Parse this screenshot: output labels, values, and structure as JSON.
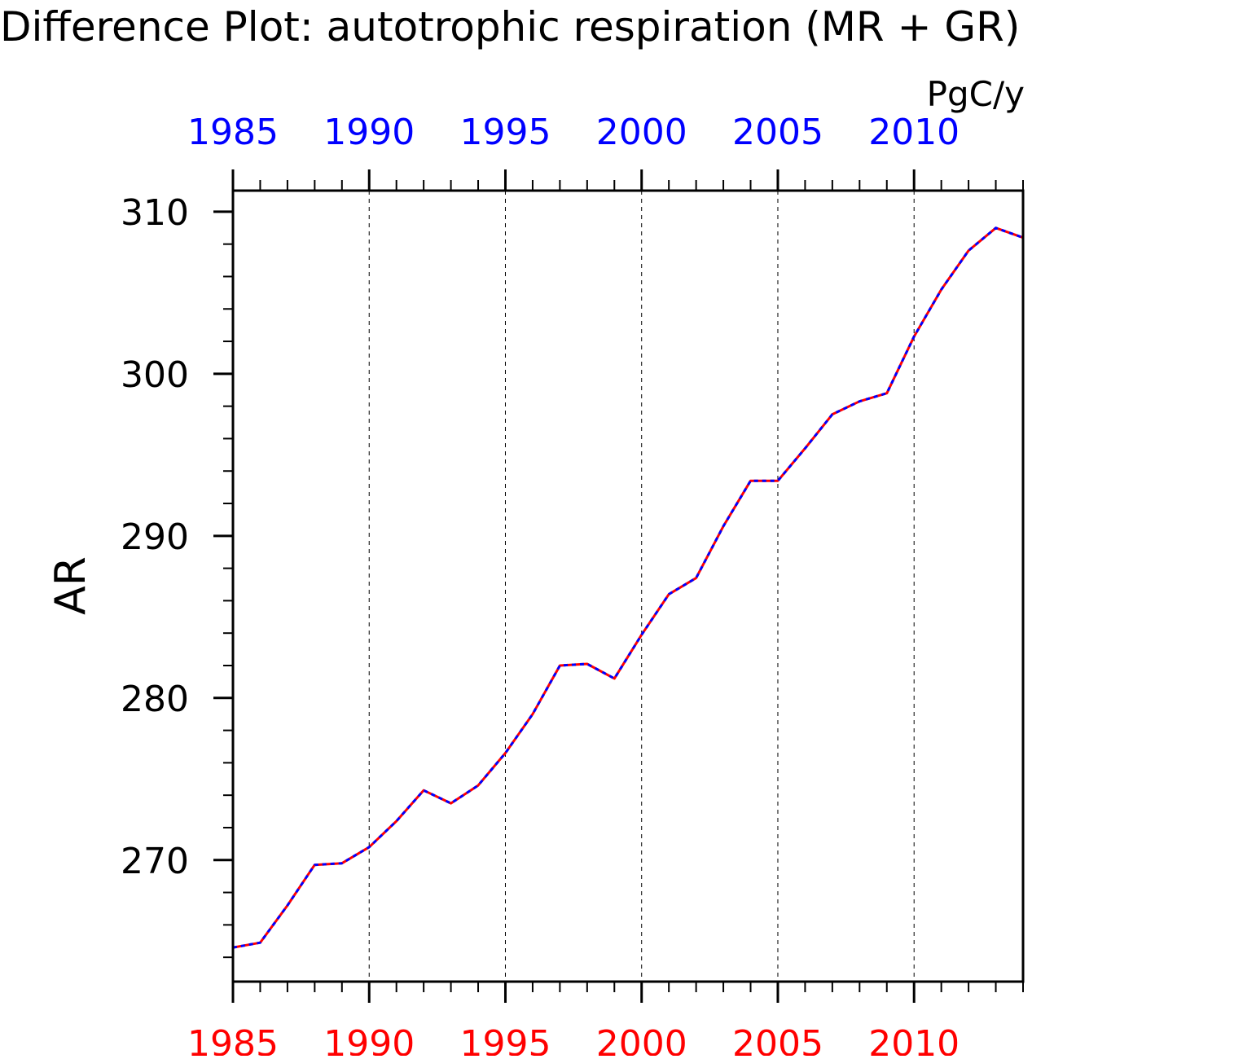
{
  "chart_data": {
    "type": "line",
    "title": "Difference Plot: autotrophic respiration (MR + GR)",
    "units": "PgC/y",
    "xlabel": "",
    "ylabel": "AR",
    "xlim": [
      1985,
      2014
    ],
    "ylim": [
      262.5,
      311.3
    ],
    "x_ticks": [
      1985,
      1990,
      1995,
      2000,
      2005,
      2010
    ],
    "y_ticks": [
      270,
      280,
      290,
      300,
      310
    ],
    "grid": "vertical dashed at major x ticks",
    "x": [
      1985,
      1986,
      1987,
      1988,
      1989,
      1990,
      1991,
      1992,
      1993,
      1994,
      1995,
      1996,
      1997,
      1998,
      1999,
      2000,
      2001,
      2002,
      2003,
      2004,
      2005,
      2006,
      2007,
      2008,
      2009,
      2010,
      2011,
      2012,
      2013,
      2014
    ],
    "series": [
      {
        "color": "#ff0000",
        "dash": "solid",
        "values": [
          264.6,
          264.9,
          267.2,
          269.7,
          269.8,
          270.8,
          272.4,
          274.3,
          273.5,
          274.6,
          276.6,
          279.0,
          282.0,
          282.1,
          281.2,
          283.9,
          286.4,
          287.4,
          290.6,
          293.4,
          293.4,
          295.4,
          297.5,
          298.3,
          298.8,
          302.3,
          305.2,
          307.6,
          309.0,
          308.4
        ]
      },
      {
        "color": "#0000ff",
        "dash": "dashed",
        "values": [
          264.6,
          264.9,
          267.2,
          269.7,
          269.8,
          270.8,
          272.4,
          274.3,
          273.5,
          274.6,
          276.6,
          279.0,
          282.0,
          282.1,
          281.2,
          283.9,
          286.4,
          287.4,
          290.6,
          293.4,
          293.4,
          295.4,
          297.5,
          298.3,
          298.8,
          302.3,
          305.2,
          307.6,
          309.0,
          308.4
        ]
      }
    ],
    "x_tick_label_colors": {
      "bottom": "#ff0000",
      "top": "#0000ff"
    }
  }
}
